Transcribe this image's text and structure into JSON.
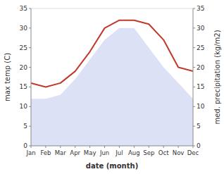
{
  "chart_data": {
    "type": "area",
    "x_label": "date (month)",
    "y_label": "max temp (C)",
    "y2_label": "med. precipitation (kg/m2)",
    "categories": [
      "Jan",
      "Feb",
      "Mar",
      "Apr",
      "May",
      "Jun",
      "Jul",
      "Aug",
      "Sep",
      "Oct",
      "Nov",
      "Dec"
    ],
    "series": [
      {
        "type": "area",
        "color": "#c5cdf0",
        "values": [
          12,
          12,
          13,
          17,
          22,
          27,
          30,
          30,
          25,
          20,
          16,
          12
        ]
      },
      {
        "type": "line",
        "color": "#c0392b",
        "axis": "y2",
        "values": [
          16,
          15,
          16,
          19,
          24,
          30,
          32,
          32,
          31,
          27,
          20,
          19
        ]
      }
    ],
    "ylim": [
      0,
      35
    ],
    "yticks": [
      0,
      5,
      10,
      15,
      20,
      25,
      30,
      35
    ],
    "y2lim": [
      0,
      35
    ],
    "y2ticks": [
      0,
      5,
      10,
      15,
      20,
      25,
      30,
      35
    ]
  }
}
